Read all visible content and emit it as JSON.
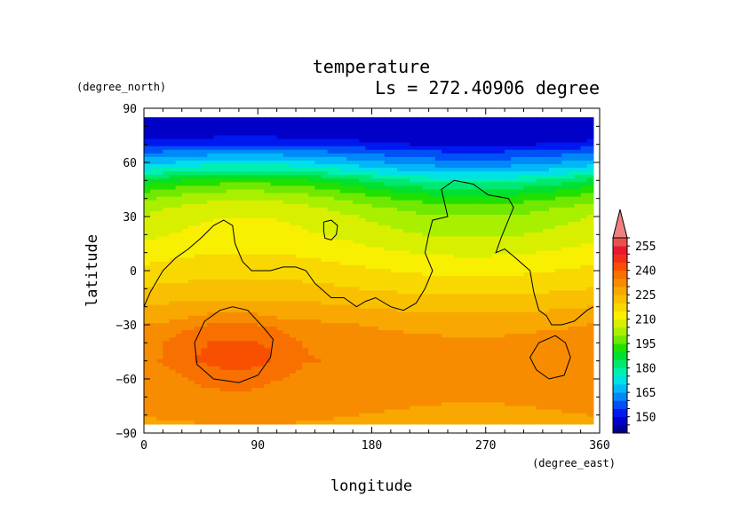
{
  "chart_data": {
    "type": "heatmap",
    "title": "temperature",
    "subtitle": "Ls = 272.40906 degree",
    "xlabel": "longitude",
    "ylabel": "latitude",
    "xunit": "(degree_east)",
    "yunit": "(degree_north)",
    "xlim": [
      0,
      360
    ],
    "ylim": [
      -90,
      90
    ],
    "xticks": [
      0,
      90,
      180,
      270,
      360
    ],
    "yticks": [
      90,
      60,
      30,
      0,
      -30,
      -60,
      -90
    ],
    "data_extent": {
      "lon": [
        0,
        355
      ],
      "lat": [
        -85,
        85
      ]
    },
    "colorbar": {
      "levels": [
        140,
        145,
        150,
        155,
        160,
        165,
        170,
        175,
        180,
        185,
        190,
        195,
        200,
        205,
        210,
        215,
        220,
        225,
        230,
        235,
        240,
        245,
        250,
        255,
        260
      ],
      "labels": [
        255,
        240,
        225,
        210,
        195,
        180,
        165,
        150
      ],
      "colors": [
        "#000090",
        "#0000c8",
        "#0018f0",
        "#0050f8",
        "#0088f8",
        "#00b8f8",
        "#00e0e8",
        "#00f0b0",
        "#00e870",
        "#00e030",
        "#20e000",
        "#70e800",
        "#a8f000",
        "#d8f000",
        "#f8f000",
        "#f8d800",
        "#f8c000",
        "#f8a800",
        "#f88c00",
        "#f87000",
        "#f85000",
        "#f03018",
        "#e81830",
        "#e85050"
      ],
      "overflow_color": "#f08080"
    },
    "temperature_profile": [
      {
        "lat": 85,
        "value": 145
      },
      {
        "lat": 75,
        "value": 147
      },
      {
        "lat": 70,
        "value": 152
      },
      {
        "lat": 65,
        "value": 160
      },
      {
        "lat": 60,
        "value": 167
      },
      {
        "lat": 55,
        "value": 175
      },
      {
        "lat": 50,
        "value": 185
      },
      {
        "lat": 45,
        "value": 192
      },
      {
        "lat": 40,
        "value": 198
      },
      {
        "lat": 35,
        "value": 202
      },
      {
        "lat": 30,
        "value": 205
      },
      {
        "lat": 20,
        "value": 208
      },
      {
        "lat": 10,
        "value": 212
      },
      {
        "lat": 0,
        "value": 216
      },
      {
        "lat": -10,
        "value": 220
      },
      {
        "lat": -20,
        "value": 225
      },
      {
        "lat": -30,
        "value": 230
      },
      {
        "lat": -40,
        "value": 233
      },
      {
        "lat": -50,
        "value": 234
      },
      {
        "lat": -60,
        "value": 232
      },
      {
        "lat": -70,
        "value": 232
      },
      {
        "lat": -80,
        "value": 230
      },
      {
        "lat": -85,
        "value": 229
      }
    ],
    "wave_amplitude": [
      {
        "lat": 85,
        "value": 0
      },
      {
        "lat": 65,
        "value": 4
      },
      {
        "lat": 50,
        "value": 8
      },
      {
        "lat": 30,
        "value": 5
      },
      {
        "lat": 10,
        "value": 3
      },
      {
        "lat": -10,
        "value": 2
      },
      {
        "lat": -30,
        "value": 2
      },
      {
        "lat": -50,
        "value": 2
      },
      {
        "lat": -85,
        "value": 1
      }
    ],
    "warm_regions": [
      {
        "lon": 70,
        "lat": -45,
        "radius_lon": 60,
        "radius_lat": 25,
        "delta": 6
      },
      {
        "lon": 320,
        "lat": -45,
        "radius_lon": 20,
        "radius_lat": 12,
        "delta": 2
      }
    ],
    "contours": [
      {
        "name": "northern-boundary",
        "points": [
          [
            0,
            -20
          ],
          [
            5,
            -12
          ],
          [
            15,
            0
          ],
          [
            25,
            7
          ],
          [
            35,
            12
          ],
          [
            45,
            18
          ],
          [
            55,
            25
          ],
          [
            63,
            28
          ],
          [
            70,
            25
          ],
          [
            72,
            15
          ],
          [
            78,
            5
          ],
          [
            85,
            0
          ],
          [
            100,
            0
          ],
          [
            110,
            2
          ],
          [
            120,
            2
          ],
          [
            128,
            0
          ],
          [
            135,
            -7
          ],
          [
            148,
            -15
          ],
          [
            158,
            -15
          ],
          [
            168,
            -20
          ],
          [
            175,
            -17
          ],
          [
            183,
            -15
          ],
          [
            195,
            -20
          ],
          [
            205,
            -22
          ],
          [
            215,
            -18
          ],
          [
            222,
            -10
          ],
          [
            228,
            0
          ],
          [
            222,
            10
          ],
          [
            225,
            20
          ],
          [
            228,
            28
          ],
          [
            240,
            30
          ],
          [
            235,
            45
          ],
          [
            245,
            50
          ],
          [
            260,
            48
          ],
          [
            272,
            42
          ],
          [
            288,
            40
          ],
          [
            292,
            35
          ],
          [
            282,
            18
          ],
          [
            278,
            10
          ],
          [
            285,
            12
          ],
          [
            292,
            8
          ],
          [
            305,
            0
          ],
          [
            308,
            -12
          ],
          [
            312,
            -22
          ],
          [
            318,
            -25
          ],
          [
            322,
            -30
          ],
          [
            330,
            -30
          ],
          [
            340,
            -28
          ],
          [
            350,
            -22
          ],
          [
            355,
            -20
          ]
        ]
      },
      {
        "name": "small-loop-north",
        "points": [
          [
            142,
            27
          ],
          [
            148,
            28
          ],
          [
            153,
            25
          ],
          [
            152,
            20
          ],
          [
            148,
            17
          ],
          [
            143,
            18
          ],
          [
            142,
            22
          ],
          [
            142,
            27
          ]
        ]
      },
      {
        "name": "loop-southwest",
        "points": [
          [
            70,
            -20
          ],
          [
            82,
            -22
          ],
          [
            95,
            -32
          ],
          [
            102,
            -38
          ],
          [
            100,
            -48
          ],
          [
            90,
            -58
          ],
          [
            75,
            -62
          ],
          [
            55,
            -60
          ],
          [
            42,
            -52
          ],
          [
            40,
            -40
          ],
          [
            48,
            -28
          ],
          [
            60,
            -22
          ],
          [
            70,
            -20
          ]
        ]
      },
      {
        "name": "loop-southeast",
        "points": [
          [
            325,
            -36
          ],
          [
            333,
            -40
          ],
          [
            337,
            -48
          ],
          [
            332,
            -58
          ],
          [
            320,
            -60
          ],
          [
            310,
            -55
          ],
          [
            305,
            -48
          ],
          [
            312,
            -40
          ],
          [
            325,
            -36
          ]
        ]
      }
    ]
  }
}
